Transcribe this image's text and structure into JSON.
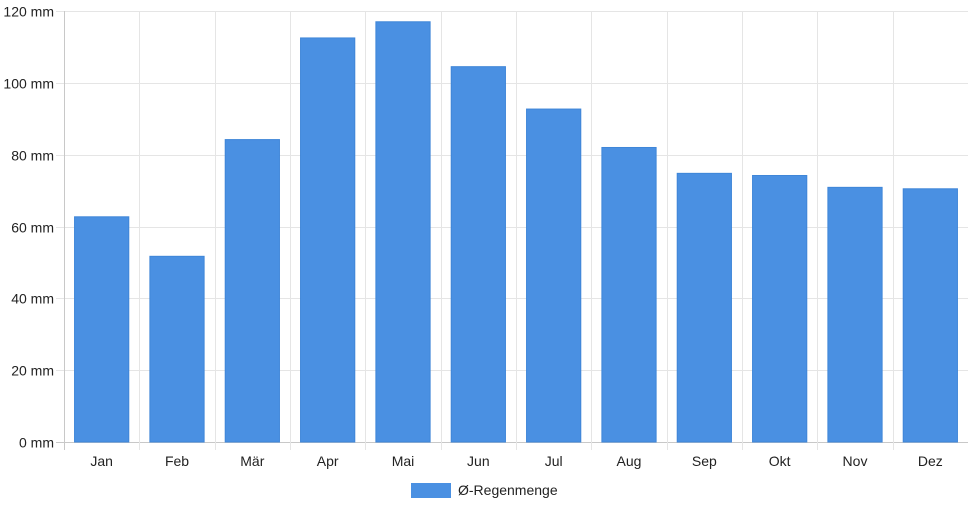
{
  "chart_data": {
    "type": "bar",
    "categories": [
      "Jan",
      "Feb",
      "Mär",
      "Apr",
      "Mai",
      "Jun",
      "Jul",
      "Aug",
      "Sep",
      "Okt",
      "Nov",
      "Dez"
    ],
    "series": [
      {
        "name": "Ø-Regenmenge",
        "values": [
          62.7,
          51.7,
          84.2,
          112.5,
          117.0,
          104.5,
          92.7,
          82.0,
          74.8,
          74.2,
          70.9,
          70.5
        ],
        "color": "#4a90e2"
      }
    ],
    "y_unit": "mm",
    "y_ticks": [
      0,
      20,
      40,
      60,
      80,
      100,
      120
    ],
    "y_tick_labels": [
      "0 mm",
      "20 mm",
      "40 mm",
      "60 mm",
      "80 mm",
      "100 mm",
      "120 mm"
    ],
    "ylim": [
      0,
      120
    ],
    "grid": true,
    "legend_position": "bottom-center",
    "title": "",
    "xlabel": "",
    "ylabel": ""
  }
}
